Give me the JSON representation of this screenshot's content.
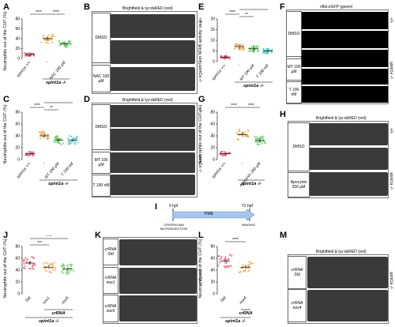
{
  "panels": {
    "A": {
      "letter": "A",
      "ylabel": "Neutrophils out of the CHT (%)",
      "yticks": [
        "80",
        "60",
        "40",
        "20",
        "0"
      ],
      "xlabels": [
        "spint1a +/+",
        "-",
        "NAC 100 µM"
      ],
      "group": "spint1a -/-",
      "sig": [
        "****",
        "****"
      ]
    },
    "B": {
      "letter": "B",
      "title": "Brightfield & lyz:dsRED (red)",
      "conds": [
        "DMSO",
        "NAC 100 µM"
      ],
      "genos": [
        "+/+",
        "spint1a -/-"
      ]
    },
    "C": {
      "letter": "C",
      "ylabel": "Neutrophils out of the CHT (%)",
      "yticks": [
        "80",
        "60",
        "40",
        "20",
        "0"
      ],
      "xlabels": [
        "spint1a +/+",
        "-",
        "MT 100 µM",
        "T 100 nM"
      ],
      "group": "spint1a -/-",
      "sig": [
        "****",
        "****",
        "**"
      ]
    },
    "D": {
      "letter": "D",
      "title": "Brightfield & lyz:dsRED (red)",
      "conds": [
        "DMSO",
        "MT 100 µM",
        "T 100 nM"
      ],
      "genos": [
        "+/+",
        "spint1a -/-"
      ]
    },
    "E": {
      "letter": "E",
      "ylabel": "Skin NFkB activity (au)",
      "yticks": [
        "20",
        "15",
        "10",
        "5",
        "0"
      ],
      "xlabels": [
        "spint1a +/+",
        "-",
        "MT 100 µM",
        "T 100 nM"
      ],
      "group": "spint1a -/-",
      "sig": [
        "****",
        "****",
        "**"
      ]
    },
    "F": {
      "letter": "F",
      "title": "nfkb:eGFP (green)",
      "conds": [
        "DMSO",
        "MT 100 µM",
        "T 100 nM"
      ],
      "genos": [
        "+/+",
        "spint1a -/-"
      ]
    },
    "G": {
      "letter": "G",
      "ylabel": "Neutrophils out of the CHT (%)",
      "yticks": [
        "80",
        "60",
        "40",
        "20",
        "0"
      ],
      "xlabels": [
        "spint1a +/+",
        "-",
        "Apocynin 250 µM"
      ],
      "group": "spint1a -/-",
      "sig": [
        "****",
        "****"
      ]
    },
    "H": {
      "letter": "H",
      "title": "Brightfield & lyz:dsRED (red)",
      "conds": [
        "DMSO",
        "Apocynin 250 µM"
      ],
      "genos": [
        "+/+",
        "spint1a -/-"
      ]
    },
    "I": {
      "letter": "I",
      "t0": "0 hpf",
      "t1": "72 hpf",
      "bar": "TIME",
      "left": "CRISPR/Cas9 MICROINJECTION",
      "right": "IMAGING"
    },
    "J": {
      "letter": "J",
      "ylabel": "Neutrophils out of the CHT (%)",
      "yticks": [
        "80",
        "60",
        "40",
        "20",
        "0"
      ],
      "xlabels": [
        "Std",
        "nox1",
        "nox5"
      ],
      "group": "crRNA",
      "group2": "spint1a -/-",
      "sig": [
        "****",
        "***"
      ]
    },
    "K": {
      "letter": "K",
      "title": "Brightfield & lyz:dsRED (red)",
      "conds": [
        "crRNA Std",
        "crRNA nox1",
        "crRNA nox5"
      ],
      "genos": [
        "spint1a -/-"
      ]
    },
    "L": {
      "letter": "L",
      "ylabel": "Neutrophils out of the CHT (%)",
      "yticks": [
        "80",
        "60",
        "40",
        "20",
        "0"
      ],
      "xlabels": [
        "Std",
        "nox4"
      ],
      "group": "crRNA",
      "group2": "spint1a -/-",
      "sig": [
        "****"
      ]
    },
    "M": {
      "letter": "M",
      "title": "Brightfield & lyz:dsRED (red)",
      "conds": [
        "crRNA Std",
        "crRNA nox4"
      ],
      "genos": [
        "spint1a -/-"
      ]
    }
  },
  "chart_data": [
    {
      "panel": "A",
      "type": "scatter",
      "categories": [
        "spint1a +/+",
        "-",
        "NAC 100 µM"
      ],
      "values": [
        8,
        40,
        30
      ],
      "ylim": [
        0,
        80
      ],
      "ylabel": "Neutrophils out of the CHT (%)",
      "colors": [
        "#e8617a",
        "#f5a742",
        "#5fcf5f"
      ]
    },
    {
      "panel": "C",
      "type": "scatter",
      "categories": [
        "spint1a +/+",
        "-",
        "MT 100 µM",
        "T 100 nM"
      ],
      "values": [
        10,
        40,
        33,
        33
      ],
      "ylim": [
        0,
        80
      ],
      "ylabel": "Neutrophils out of the CHT (%)",
      "colors": [
        "#e8617a",
        "#f5a742",
        "#5fcf5f",
        "#4fd6c9"
      ]
    },
    {
      "panel": "E",
      "type": "scatter",
      "categories": [
        "spint1a +/+",
        "-",
        "MT 100 µM",
        "T 100 nM"
      ],
      "values": [
        2,
        7,
        6,
        5
      ],
      "ylim": [
        0,
        20
      ],
      "ylabel": "Skin NFkB activity (au)",
      "colors": [
        "#e8617a",
        "#f5a742",
        "#5fcf5f",
        "#4fd6c9"
      ]
    },
    {
      "panel": "G",
      "type": "scatter",
      "categories": [
        "spint1a +/+",
        "-",
        "Apocynin 250 µM"
      ],
      "values": [
        10,
        42,
        32
      ],
      "ylim": [
        0,
        80
      ],
      "ylabel": "Neutrophils out of the CHT (%)",
      "colors": [
        "#e8617a",
        "#f5a742",
        "#5fcf5f"
      ]
    },
    {
      "panel": "J",
      "type": "scatter",
      "categories": [
        "Std",
        "nox1",
        "nox5"
      ],
      "values": [
        52,
        45,
        42
      ],
      "ylim": [
        0,
        80
      ],
      "ylabel": "Neutrophils out of the CHT (%)",
      "colors": [
        "#e8617a",
        "#f5a742",
        "#5fcf5f"
      ]
    },
    {
      "panel": "L",
      "type": "scatter",
      "categories": [
        "Std",
        "nox4"
      ],
      "values": [
        55,
        45
      ],
      "ylim": [
        0,
        80
      ],
      "ylabel": "Neutrophils out of the CHT (%)",
      "colors": [
        "#e8617a",
        "#f5a742"
      ]
    }
  ]
}
